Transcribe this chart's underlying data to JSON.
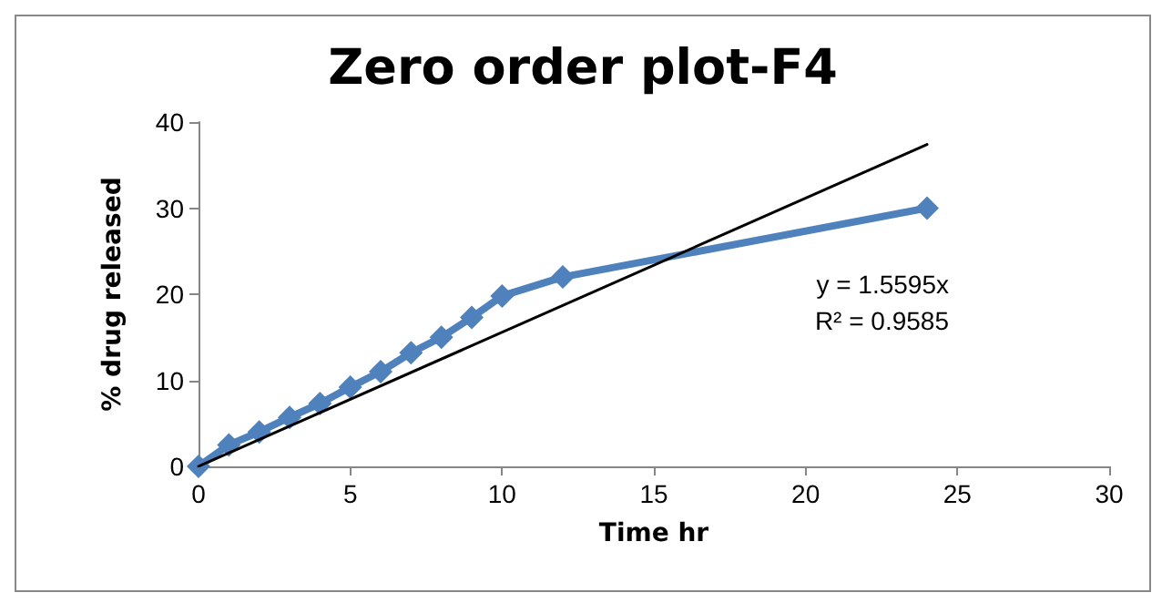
{
  "chart_data": {
    "type": "line",
    "title": "Zero order plot-F4",
    "xlabel": "Time hr",
    "ylabel": "% drug released",
    "x": [
      0,
      1,
      2,
      3,
      4,
      5,
      6,
      7,
      8,
      9,
      10,
      12,
      24
    ],
    "series": [
      {
        "color": "#4f81bd",
        "values": [
          0,
          2.5,
          4,
          5.7,
          7.3,
          9.2,
          11,
          13.2,
          15,
          17.3,
          19.8,
          22,
          30
        ],
        "marker": "diamond"
      },
      {
        "type": "line",
        "color": "#000000",
        "x": [
          0,
          24
        ],
        "values": [
          0,
          37.4
        ],
        "marker": "none"
      }
    ],
    "xlim": [
      0,
      30
    ],
    "xticks": [
      0,
      5,
      10,
      15,
      20,
      25,
      30
    ],
    "ylim": [
      0,
      40
    ],
    "yticks": [
      0,
      10,
      20,
      30,
      40
    ],
    "annotations": [
      "y = 1.5595x",
      "R² = 0.9585"
    ],
    "grid": false
  }
}
